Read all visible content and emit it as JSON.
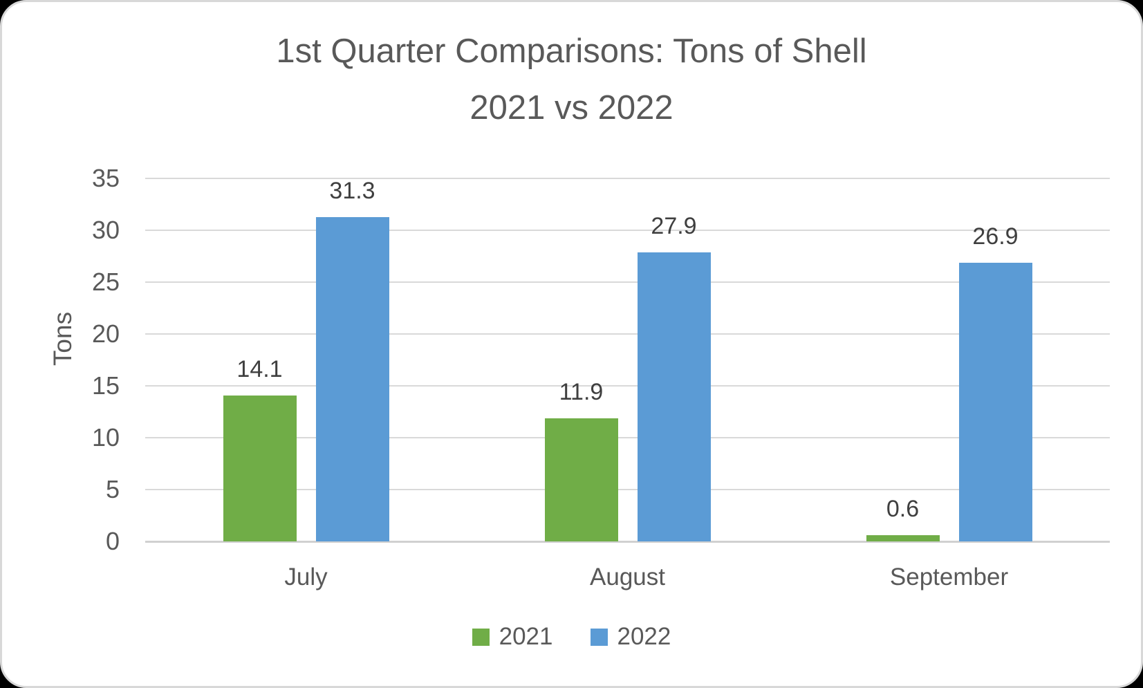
{
  "chart_data": {
    "type": "bar",
    "title_line1": "1st Quarter Comparisons: Tons of Shell",
    "title_line2": "2021 vs 2022",
    "ylabel": "Tons",
    "categories": [
      "July",
      "August",
      "September"
    ],
    "series": [
      {
        "name": "2021",
        "color": "#70AD47",
        "values": [
          14.1,
          11.9,
          0.6
        ]
      },
      {
        "name": "2022",
        "color": "#5B9BD5",
        "values": [
          31.3,
          27.9,
          26.9
        ]
      }
    ],
    "data_labels": [
      [
        "14.1",
        "11.9",
        "0.6"
      ],
      [
        "31.3",
        "27.9",
        "26.9"
      ]
    ],
    "yticks": [
      35,
      30,
      25,
      20,
      15,
      10,
      5,
      0
    ],
    "ylim": [
      0,
      35
    ],
    "grid": true,
    "legend_position": "bottom",
    "colors": {
      "series_2021": "#70AD47",
      "series_2022": "#5B9BD5",
      "title_text": "#595959",
      "axis_text": "#595959",
      "data_label_text": "#3f3f3f",
      "gridline": "#d9d9d9"
    }
  }
}
